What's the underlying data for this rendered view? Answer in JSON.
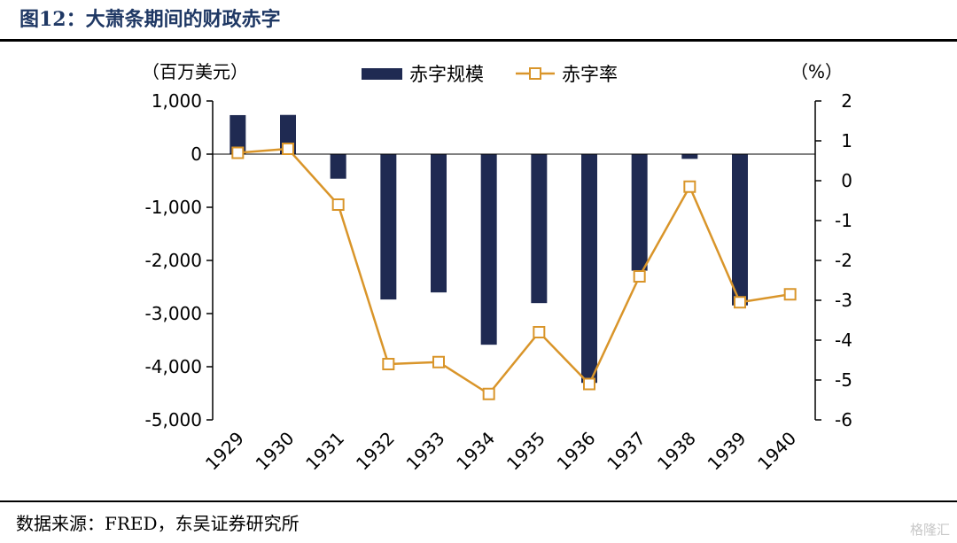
{
  "figure": {
    "title": "图12：大萧条期间的财政赤字",
    "source": "数据来源：FRED，东吴证券研究所",
    "watermark": "格隆汇"
  },
  "colors": {
    "bar": "#1f2a52",
    "line": "#d9952a",
    "title": "#1f3864"
  },
  "chart_data": {
    "type": "bar+line",
    "title": "大萧条期间的财政赤字",
    "categories": [
      "1929",
      "1930",
      "1931",
      "1932",
      "1933",
      "1934",
      "1935",
      "1936",
      "1937",
      "1938",
      "1939",
      "1940"
    ],
    "series": [
      {
        "name": "赤字规模",
        "type": "bar",
        "axis": "left",
        "values": [
          734,
          738,
          -462,
          -2735,
          -2602,
          -3586,
          -2803,
          -4304,
          -2193,
          -89,
          -2846,
          null
        ]
      },
      {
        "name": "赤字率",
        "type": "line",
        "axis": "right",
        "values": [
          0.7,
          0.8,
          -0.6,
          -4.6,
          -4.55,
          -5.35,
          -3.8,
          -5.1,
          -2.4,
          -0.15,
          -3.05,
          -2.85
        ]
      }
    ],
    "left_axis": {
      "unit": "（百万美元）",
      "ylim": [
        -5000,
        1000
      ],
      "ticks": [
        1000,
        0,
        -1000,
        -2000,
        -3000,
        -4000,
        -5000
      ],
      "tick_labels": [
        "1,000",
        "0",
        "-1,000",
        "-2,000",
        "-3,000",
        "-4,000",
        "-5,000"
      ]
    },
    "right_axis": {
      "unit": "（%）",
      "ylim": [
        -6,
        2
      ],
      "ticks": [
        2,
        1,
        0,
        -1,
        -2,
        -3,
        -4,
        -5,
        -6
      ],
      "tick_labels": [
        "2",
        "1",
        "0",
        "-1",
        "-2",
        "-3",
        "-4",
        "-5",
        "-6"
      ]
    },
    "legend": {
      "placement": "top-center",
      "entries": [
        "赤字规模",
        "赤字率"
      ]
    },
    "grid": false
  }
}
